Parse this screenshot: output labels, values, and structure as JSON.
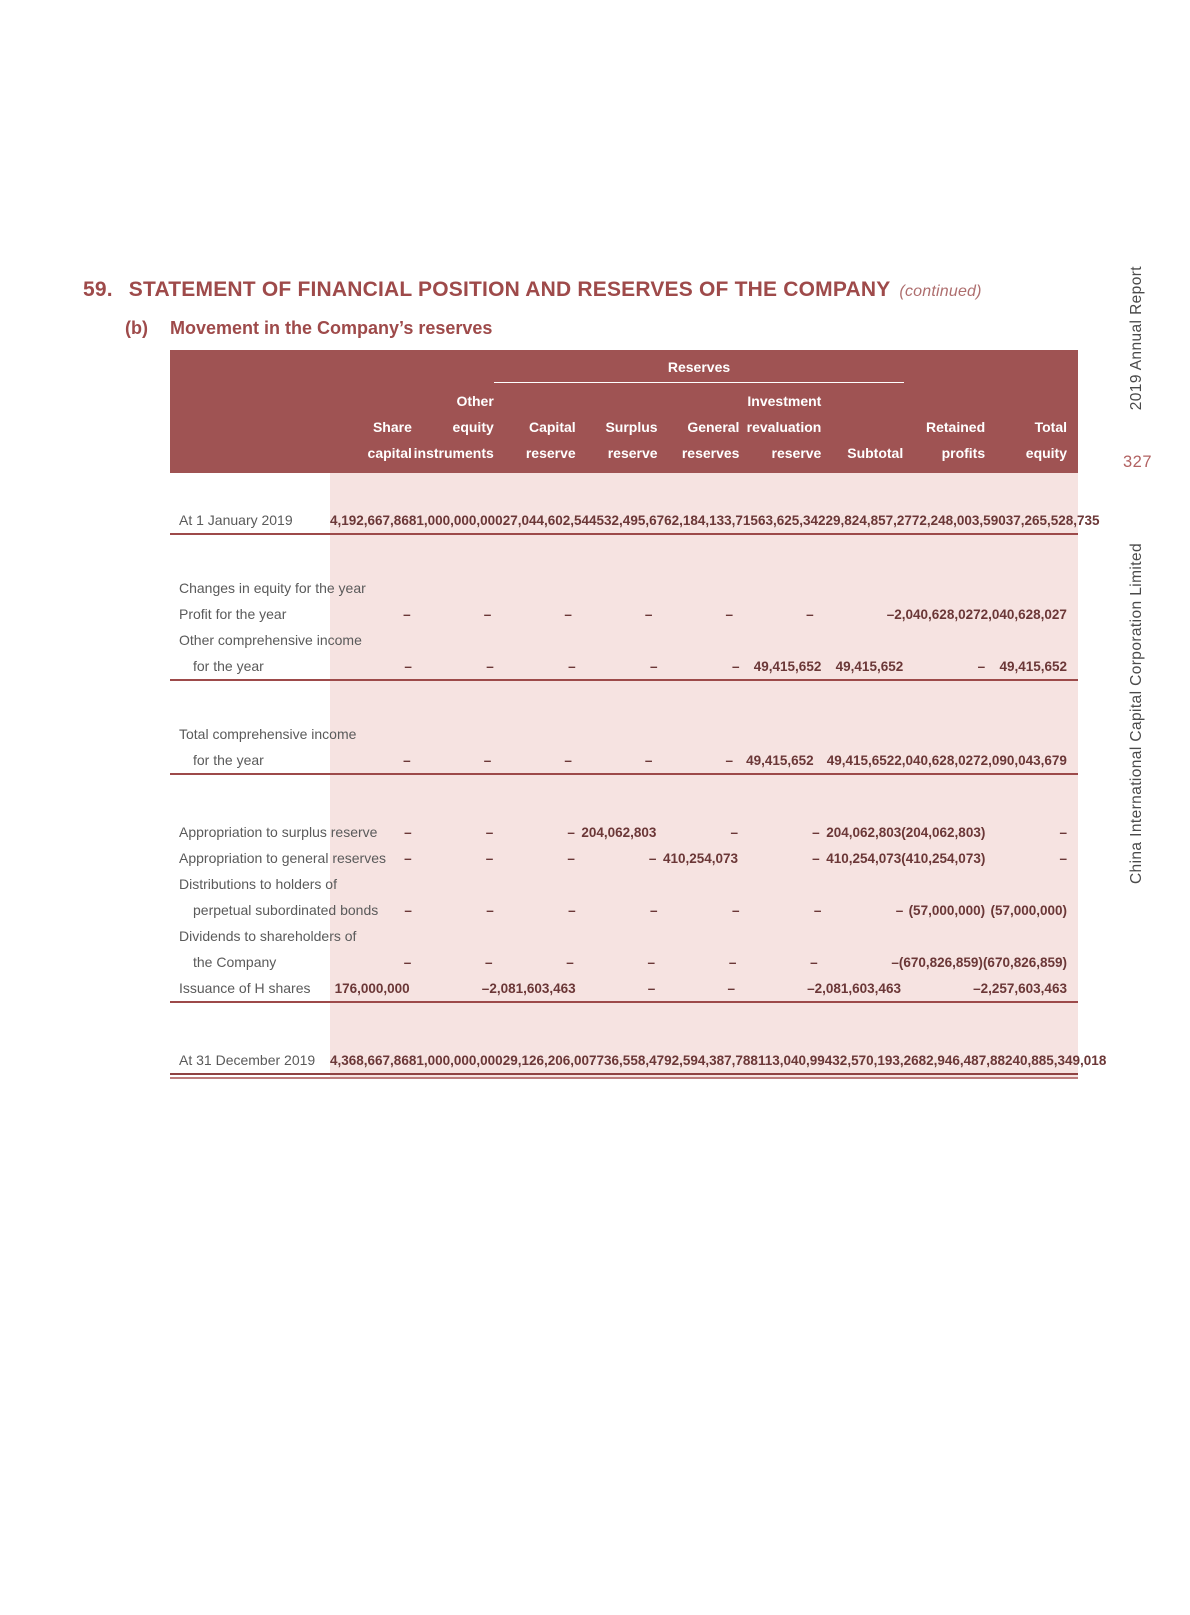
{
  "page": {
    "section_number": "59.",
    "title": "STATEMENT OF FINANCIAL POSITION AND RESERVES OF THE COMPANY",
    "continued": "(continued)",
    "sub_label": "(b)",
    "subtitle": "Movement in the Company’s reserves"
  },
  "sidebar": {
    "report": "2019 Annual Report",
    "page_number": "327",
    "company": "China International Capital Corporation Limited"
  },
  "table": {
    "group_header": "Reserves",
    "columns": [
      {
        "lines": [
          "Share",
          "capital"
        ]
      },
      {
        "lines": [
          "Other",
          "equity",
          "instruments"
        ]
      },
      {
        "lines": [
          "Capital",
          "reserve"
        ]
      },
      {
        "lines": [
          "Surplus",
          "reserve"
        ]
      },
      {
        "lines": [
          "General",
          "reserves"
        ]
      },
      {
        "lines": [
          "Investment",
          "revaluation",
          "reserve"
        ]
      },
      {
        "lines": [
          "Subtotal"
        ]
      },
      {
        "lines": [
          "Retained",
          "profits"
        ]
      },
      {
        "lines": [
          "Total",
          "equity"
        ]
      }
    ],
    "rows": [
      {
        "label": "At 1 January 2019",
        "indent": false,
        "space_before": 34,
        "rule": "single",
        "values": [
          "4,192,667,868",
          "1,000,000,000",
          "27,044,602,544",
          "532,495,676",
          "2,184,133,715",
          "63,625,342",
          "29,824,857,277",
          "2,248,003,590",
          "37,265,528,735"
        ]
      },
      {
        "label": "Changes in equity for the year",
        "indent": false,
        "space_before": 40,
        "rule": "none",
        "values": null
      },
      {
        "label": "Profit for the year",
        "indent": false,
        "space_before": 0,
        "rule": "none",
        "values": [
          "–",
          "–",
          "–",
          "–",
          "–",
          "–",
          "–",
          "2,040,628,027",
          "2,040,628,027"
        ]
      },
      {
        "label": "Other comprehensive income",
        "indent": false,
        "space_before": 0,
        "rule": "none",
        "values": null
      },
      {
        "label": "for the year",
        "indent": true,
        "space_before": 0,
        "rule": "single",
        "values": [
          "–",
          "–",
          "–",
          "–",
          "–",
          "49,415,652",
          "49,415,652",
          "–",
          "49,415,652"
        ]
      },
      {
        "label": "Total comprehensive income",
        "indent": false,
        "space_before": 40,
        "rule": "none",
        "values": null
      },
      {
        "label": "for the year",
        "indent": true,
        "space_before": 0,
        "rule": "single",
        "values": [
          "–",
          "–",
          "–",
          "–",
          "–",
          "49,415,652",
          "49,415,652",
          "2,040,628,027",
          "2,090,043,679"
        ]
      },
      {
        "label": "Appropriation to surplus reserve",
        "indent": false,
        "space_before": 44,
        "rule": "none",
        "values": [
          "–",
          "–",
          "–",
          "204,062,803",
          "–",
          "–",
          "204,062,803",
          "(204,062,803)",
          "–"
        ]
      },
      {
        "label": "Appropriation to general reserves",
        "indent": false,
        "space_before": 0,
        "rule": "none",
        "values": [
          "–",
          "–",
          "–",
          "–",
          "410,254,073",
          "–",
          "410,254,073",
          "(410,254,073)",
          "–"
        ]
      },
      {
        "label": "Distributions to holders of",
        "indent": false,
        "space_before": 0,
        "rule": "none",
        "values": null
      },
      {
        "label": "perpetual subordinated bonds",
        "indent": true,
        "space_before": 0,
        "rule": "none",
        "values": [
          "–",
          "–",
          "–",
          "–",
          "–",
          "–",
          "–",
          "(57,000,000)",
          "(57,000,000)"
        ]
      },
      {
        "label": "Dividends to shareholders of",
        "indent": false,
        "space_before": 0,
        "rule": "none",
        "values": null
      },
      {
        "label": "the Company",
        "indent": true,
        "space_before": 0,
        "rule": "none",
        "values": [
          "–",
          "–",
          "–",
          "–",
          "–",
          "–",
          "–",
          "(670,826,859)",
          "(670,826,859)"
        ]
      },
      {
        "label": "Issuance of H shares",
        "indent": false,
        "space_before": 0,
        "rule": "single",
        "values": [
          "176,000,000",
          "–",
          "2,081,603,463",
          "–",
          "–",
          "–",
          "2,081,603,463",
          "–",
          "2,257,603,463"
        ]
      },
      {
        "label": "At 31 December 2019",
        "indent": false,
        "space_before": 44,
        "rule": "double",
        "values": [
          "4,368,667,868",
          "1,000,000,000",
          "29,126,206,007",
          "736,558,479",
          "2,594,387,788",
          "113,040,994",
          "32,570,193,268",
          "2,946,487,882",
          "40,885,349,018"
        ]
      }
    ]
  },
  "colors": {
    "header_bg": "#9f5353",
    "body_pink": "#f6e3e1",
    "title_red": "#9e4a4a",
    "rule_red": "#9d4a4a",
    "number_text": "#6b3737",
    "label_text": "#5a5a5a",
    "page_number_red": "#b26262"
  }
}
